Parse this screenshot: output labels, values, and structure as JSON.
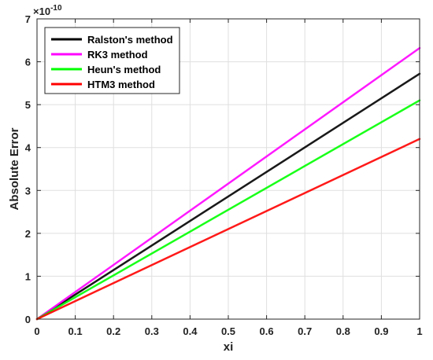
{
  "chart_data": {
    "type": "line",
    "xlabel": "xi",
    "ylabel": "Absolute Error",
    "y_multiplier": {
      "base": "×10",
      "exponent": "-10"
    },
    "xlim": [
      0,
      1
    ],
    "ylim": [
      0,
      7
    ],
    "x_ticks": [
      "0",
      "0.1",
      "0.2",
      "0.3",
      "0.4",
      "0.5",
      "0.6",
      "0.7",
      "0.8",
      "0.9",
      "1"
    ],
    "y_ticks": [
      "0",
      "1",
      "2",
      "3",
      "4",
      "5",
      "6",
      "7"
    ],
    "grid": true,
    "legend_position": "top-left",
    "x": [
      0,
      1
    ],
    "series": [
      {
        "name": "Ralston's method",
        "color": "#000000",
        "values": [
          0,
          5.72
        ]
      },
      {
        "name": "RK3 method",
        "color": "#ff00ff",
        "values": [
          0,
          6.32
        ]
      },
      {
        "name": "Heun's method",
        "color": "#00ff00",
        "values": [
          0,
          5.1
        ]
      },
      {
        "name": "HTM3 method",
        "color": "#ff0000",
        "values": [
          0,
          4.2
        ]
      }
    ]
  }
}
